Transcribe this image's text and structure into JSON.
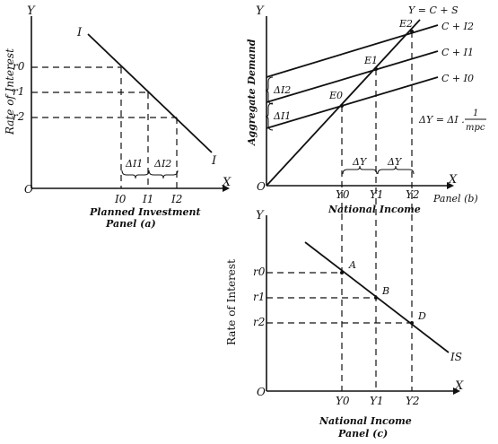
{
  "panel_a": {
    "y_axis": "Y",
    "x_axis": "X",
    "origin": "O",
    "ylabel": "Rate of Interest",
    "curve_label_top": "I",
    "curve_label_bottom": "I",
    "r0": "r0",
    "r1": "r1",
    "r2": "r2",
    "i0": "I0",
    "i1": "I1",
    "i2": "I2",
    "delta_i1": "ΔI1",
    "delta_i2": "ΔI2",
    "xlabel": "Planned Investment",
    "caption": "Panel (a)"
  },
  "panel_b": {
    "y_axis": "Y",
    "x_axis": "X",
    "origin": "O",
    "ylabel": "Aggregate Demand",
    "xlabel": "National Income",
    "caption": "Panel (b)",
    "line_45": "Y = C + S",
    "c_i0": "C + I0",
    "c_i1": "C + I1",
    "c_i2": "C + I2",
    "e0": "E0",
    "e1": "E1",
    "e2": "E2",
    "delta_i1": "ΔI1",
    "delta_i2": "ΔI2",
    "delta_y_1": "ΔY",
    "delta_y_2": "ΔY",
    "y0": "Y0",
    "y1": "Y1",
    "y2": "Y2",
    "multiplier_lhs": "ΔY = ΔI .",
    "multiplier_num": "1",
    "multiplier_den": "mpc"
  },
  "panel_c": {
    "y_axis": "Y",
    "x_axis": "X",
    "origin": "O",
    "ylabel": "Rate of Interest",
    "xlabel": "National Income",
    "caption": "Panel (c)",
    "curve_label": "IS",
    "point_a": "A",
    "point_b": "B",
    "point_d": "D",
    "r0": "r0",
    "r1": "r1",
    "r2": "r2",
    "y0": "Y0",
    "y1": "Y1",
    "y2": "Y2"
  }
}
